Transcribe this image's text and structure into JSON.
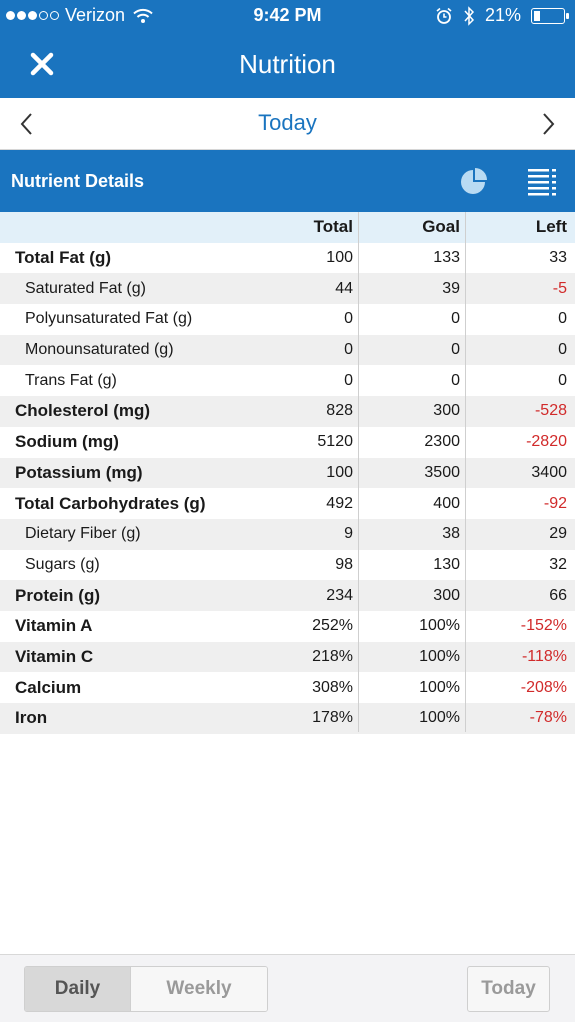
{
  "status_bar": {
    "carrier": "Verizon",
    "time": "9:42 PM",
    "battery": "21%",
    "battery_level": 0.21,
    "signal_bars_filled": 3,
    "signal_bars_total": 5,
    "icons": [
      "wifi-icon",
      "alarm-icon",
      "bluetooth-icon",
      "battery-icon"
    ]
  },
  "nav": {
    "title": "Nutrition",
    "close_icon": "close-icon"
  },
  "date_nav": {
    "label": "Today",
    "prev_icon": "chevron-left-icon",
    "next_icon": "chevron-right-icon"
  },
  "section": {
    "title": "Nutrient Details",
    "icons": [
      "pie-chart-icon",
      "list-icon"
    ]
  },
  "table": {
    "columns": [
      "Total",
      "Goal",
      "Left"
    ],
    "rows": [
      {
        "name": "Total Fat (g)",
        "total": "100",
        "goal": "133",
        "left": "33",
        "sub": false,
        "negative": false
      },
      {
        "name": "Saturated Fat (g)",
        "total": "44",
        "goal": "39",
        "left": "-5",
        "sub": true,
        "negative": true
      },
      {
        "name": "Polyunsaturated Fat (g)",
        "total": "0",
        "goal": "0",
        "left": "0",
        "sub": true,
        "negative": false
      },
      {
        "name": "Monounsaturated (g)",
        "total": "0",
        "goal": "0",
        "left": "0",
        "sub": true,
        "negative": false
      },
      {
        "name": "Trans Fat (g)",
        "total": "0",
        "goal": "0",
        "left": "0",
        "sub": true,
        "negative": false
      },
      {
        "name": "Cholesterol (mg)",
        "total": "828",
        "goal": "300",
        "left": "-528",
        "sub": false,
        "negative": true
      },
      {
        "name": "Sodium (mg)",
        "total": "5120",
        "goal": "2300",
        "left": "-2820",
        "sub": false,
        "negative": true
      },
      {
        "name": "Potassium (mg)",
        "total": "100",
        "goal": "3500",
        "left": "3400",
        "sub": false,
        "negative": false
      },
      {
        "name": "Total Carbohydrates (g)",
        "total": "492",
        "goal": "400",
        "left": "-92",
        "sub": false,
        "negative": true
      },
      {
        "name": "Dietary Fiber (g)",
        "total": "9",
        "goal": "38",
        "left": "29",
        "sub": true,
        "negative": false
      },
      {
        "name": "Sugars (g)",
        "total": "98",
        "goal": "130",
        "left": "32",
        "sub": true,
        "negative": false
      },
      {
        "name": "Protein (g)",
        "total": "234",
        "goal": "300",
        "left": "66",
        "sub": false,
        "negative": false
      },
      {
        "name": "Vitamin A",
        "total": "252%",
        "goal": "100%",
        "left": "-152%",
        "sub": false,
        "negative": true
      },
      {
        "name": "Vitamin C",
        "total": "218%",
        "goal": "100%",
        "left": "-118%",
        "sub": false,
        "negative": true
      },
      {
        "name": "Calcium",
        "total": "308%",
        "goal": "100%",
        "left": "-208%",
        "sub": false,
        "negative": true
      },
      {
        "name": "Iron",
        "total": "178%",
        "goal": "100%",
        "left": "-78%",
        "sub": false,
        "negative": true
      }
    ]
  },
  "bottom_bar": {
    "daily_label": "Daily",
    "weekly_label": "Weekly",
    "today_label": "Today",
    "selected": "Daily"
  },
  "colors": {
    "primary": "#1a74bf",
    "header_row": "#e2f0f9",
    "alt_row": "#efefef",
    "negative": "#d12a2a"
  }
}
